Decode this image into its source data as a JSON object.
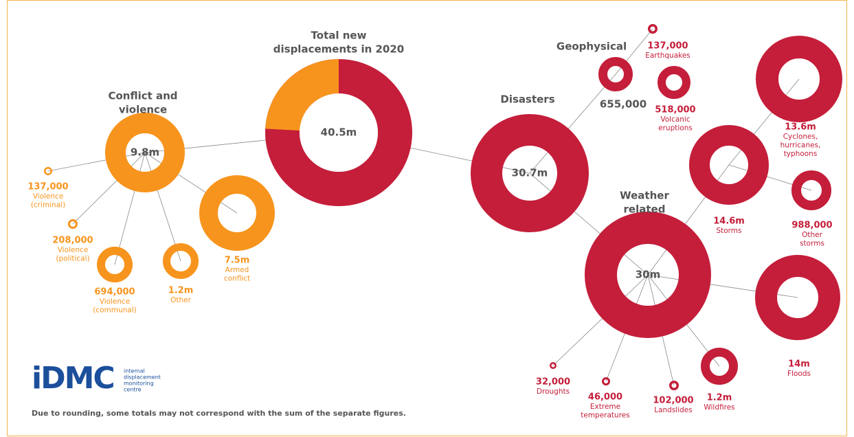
{
  "nodes": [
    {
      "title": [
        "Total new",
        "displacements in 2020"
      ],
      "value": "40.5m"
    },
    {
      "title": [
        "Conflict and",
        "violence"
      ],
      "value": "9.8m"
    },
    {
      "value": "137,000",
      "label": [
        "Violence",
        "(criminal)"
      ]
    },
    {
      "value": "208,000",
      "label": [
        "Violence",
        "(political)"
      ]
    },
    {
      "value": "694,000",
      "label": [
        "Violence",
        "(communal)"
      ]
    },
    {
      "value": "1.2m",
      "label": [
        "Other"
      ]
    },
    {
      "value": "7.5m",
      "label": [
        "Armed",
        "conflict"
      ]
    },
    {
      "title": [
        "Disasters"
      ],
      "value": "30.7m"
    },
    {
      "title": [
        "Geophysical"
      ],
      "value": "655,000"
    },
    {
      "value": "137,000",
      "label": [
        "Earthquakes"
      ]
    },
    {
      "value": "518,000",
      "label": [
        "Volcanic",
        "eruptions"
      ]
    },
    {
      "title": [
        "Weather",
        "related"
      ],
      "value": "30m"
    },
    {
      "value": "14.6m",
      "label": [
        "Storms"
      ]
    },
    {
      "value": "13.6m",
      "label": [
        "Cyclones,",
        "hurricanes,",
        "typhoons"
      ]
    },
    {
      "value": "988,000",
      "label": [
        "Other",
        "storms"
      ]
    },
    {
      "value": "14m",
      "label": [
        "Floods"
      ]
    },
    {
      "value": "1.2m",
      "label": [
        "Wildfires"
      ]
    },
    {
      "value": "102,000",
      "label": [
        "Landslides"
      ]
    },
    {
      "value": "46,000",
      "label": [
        "Extreme",
        "temperatures"
      ]
    },
    {
      "value": "32,000",
      "label": [
        "Droughts"
      ]
    }
  ],
  "logo": {
    "mark": "iDMC",
    "name": [
      "internal",
      "displacement",
      "monitoring",
      "centre"
    ]
  },
  "note": "Due to rounding, some totals may not correspond with the sum of the separate figures."
}
